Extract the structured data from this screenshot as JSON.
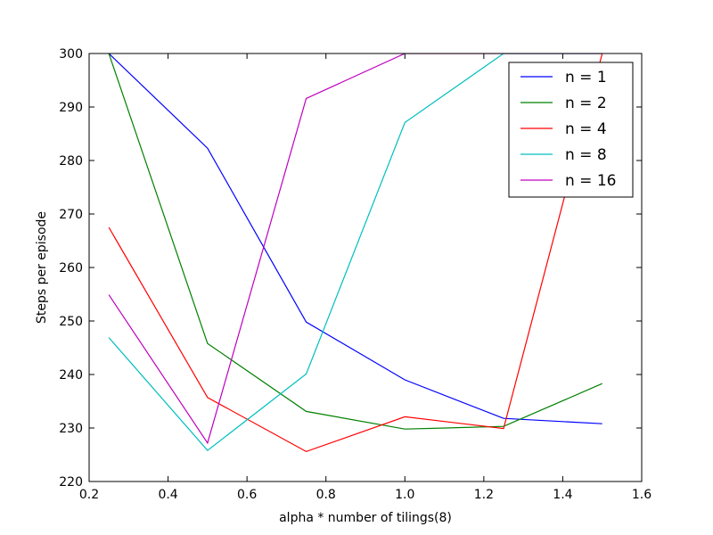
{
  "chart_data": {
    "type": "line",
    "title": "",
    "xlabel": "alpha * number of tilings(8)",
    "ylabel": "Steps per episode",
    "xlim": [
      0.2,
      1.6
    ],
    "ylim": [
      220,
      300
    ],
    "xticks": [
      0.2,
      0.4,
      0.6,
      0.8,
      1.0,
      1.2,
      1.4,
      1.6
    ],
    "xtick_labels": [
      "0.2",
      "0.4",
      "0.6",
      "0.8",
      "1.0",
      "1.2",
      "1.4",
      "1.6"
    ],
    "yticks": [
      220,
      230,
      240,
      250,
      260,
      270,
      280,
      290,
      300
    ],
    "ytick_labels": [
      "220",
      "230",
      "240",
      "250",
      "260",
      "270",
      "280",
      "290",
      "300"
    ],
    "grid": false,
    "legend_position": "top-right",
    "x": [
      0.25,
      0.5,
      0.75,
      1.0,
      1.25,
      1.5
    ],
    "series": [
      {
        "name": "n = 1",
        "color": "#0000ff",
        "values": [
          300,
          282.3,
          249.8,
          239.0,
          231.8,
          230.8
        ]
      },
      {
        "name": "n = 2",
        "color": "#008000",
        "values": [
          300,
          245.8,
          233.1,
          229.8,
          230.3,
          238.3
        ]
      },
      {
        "name": "n = 4",
        "color": "#ff0000",
        "values": [
          267.5,
          235.7,
          225.6,
          232.1,
          229.9,
          300
        ]
      },
      {
        "name": "n = 8",
        "color": "#00bfbf",
        "values": [
          246.9,
          225.8,
          240.1,
          287.1,
          300,
          300
        ]
      },
      {
        "name": "n = 16",
        "color": "#bf00bf",
        "values": [
          254.9,
          227.2,
          291.6,
          300,
          300,
          300
        ]
      }
    ]
  }
}
